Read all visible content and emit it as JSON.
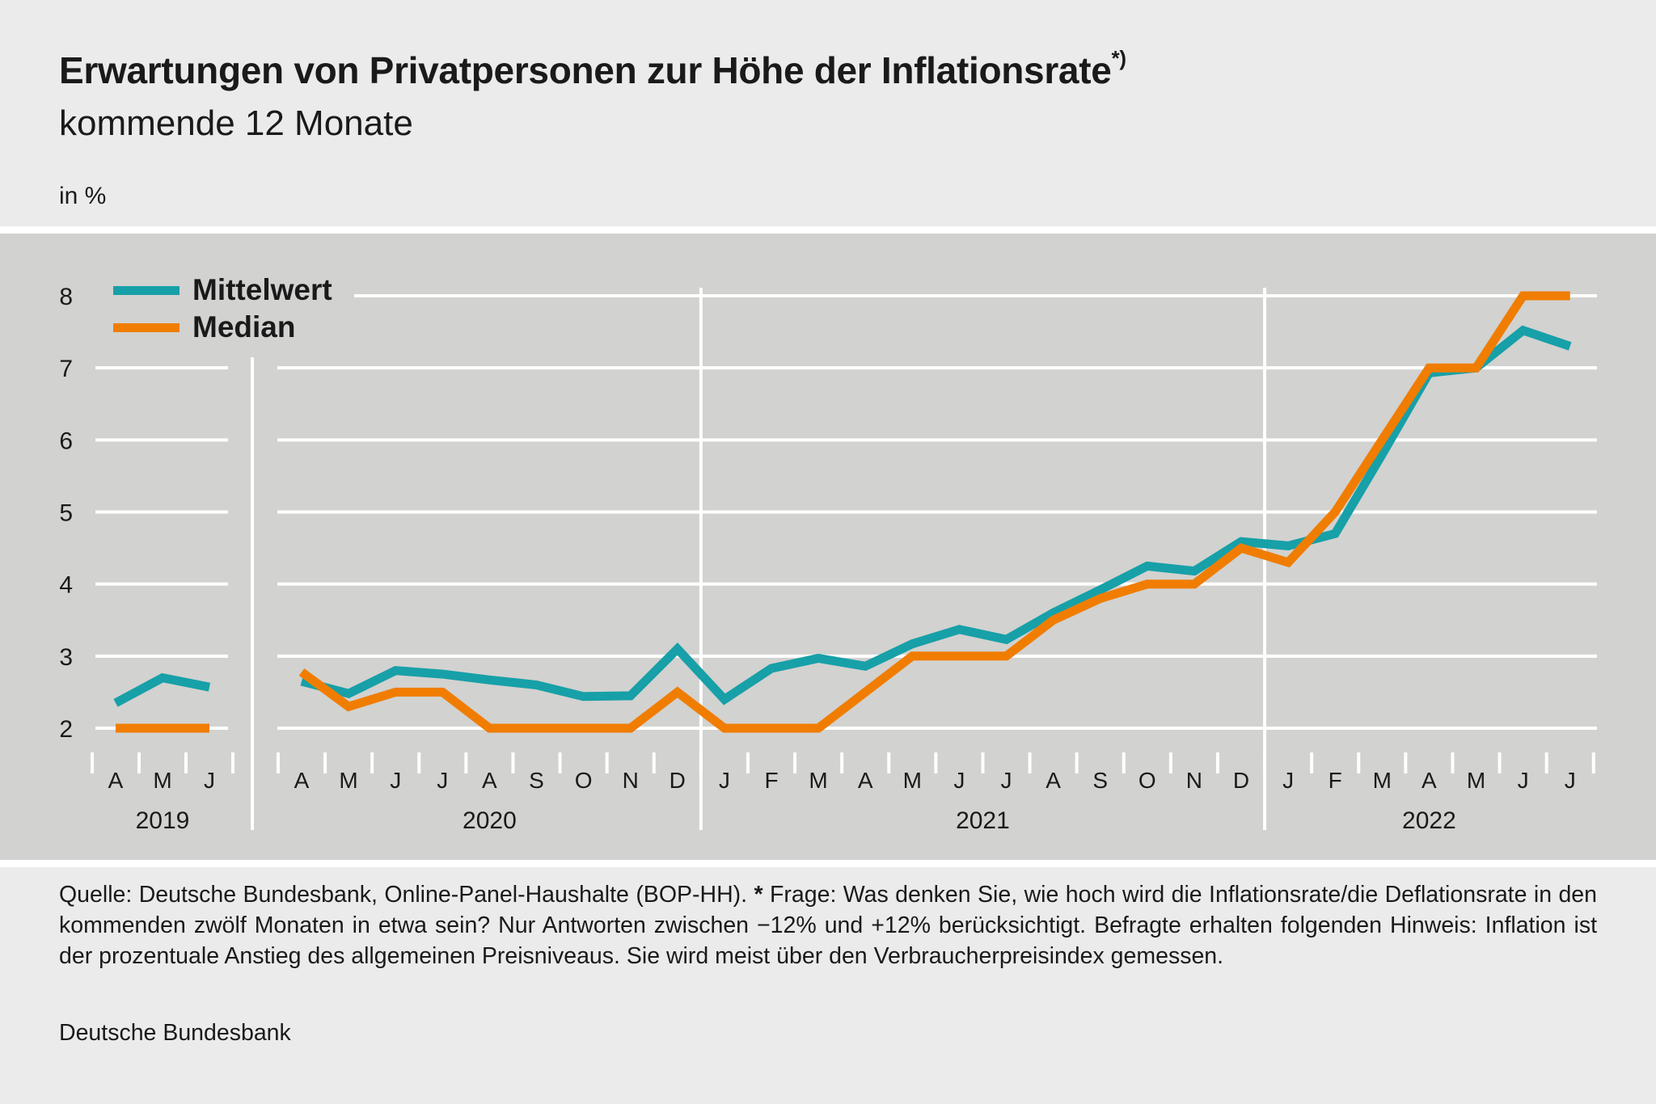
{
  "title": "Erwartungen von Privatpersonen zur Höhe der Inflationsrate",
  "title_note": "*)",
  "subtitle": "kommende 12 Monate",
  "unit": "in %",
  "footer": {
    "source": "Quelle: Deutsche Bundesbank, Online-Panel-Haushalte (BOP-HH).",
    "star": "*",
    "question": "Frage: Was denken Sie, wie hoch wird die Inflationsrate/die Deflationsrate in den kommenden zwölf Monaten in etwa sein? Nur Antworten zwischen −12% und +12% berücksichtigt. Befragte erhalten folgenden Hinweis: Inflation ist der prozentuale Anstieg des allgemeinen Preisniveaus. Sie wird meist über den Verbraucherpreisindex gemessen.",
    "publisher": "Deutsche Bundesbank"
  },
  "colors": {
    "mittelwert": "#17a0a8",
    "median": "#f07d00",
    "grid": "#ffffff",
    "background": "#d2d2d0"
  },
  "chart_data": {
    "type": "line",
    "ylim": [
      2,
      8
    ],
    "yticks": [
      2,
      3,
      4,
      5,
      6,
      7,
      8
    ],
    "legend": "top-left",
    "grid": true,
    "segments": [
      {
        "year": "2019",
        "months": [
          "A",
          "M",
          "J"
        ],
        "series": [
          {
            "name": "Mittelwert",
            "values": [
              2.35,
              2.7,
              2.57
            ]
          },
          {
            "name": "Median",
            "values": [
              2.0,
              2.0,
              2.0
            ]
          }
        ]
      },
      {
        "year_labels": [
          "2020",
          "2021",
          "2022"
        ],
        "months": [
          "A",
          "M",
          "J",
          "J",
          "A",
          "S",
          "O",
          "N",
          "D",
          "J",
          "F",
          "M",
          "A",
          "M",
          "J",
          "J",
          "A",
          "S",
          "O",
          "N",
          "D",
          "J",
          "F",
          "M",
          "A",
          "M",
          "J",
          "J"
        ],
        "year_of_month": [
          "2020",
          "2020",
          "2020",
          "2020",
          "2020",
          "2020",
          "2020",
          "2020",
          "2020",
          "2021",
          "2021",
          "2021",
          "2021",
          "2021",
          "2021",
          "2021",
          "2021",
          "2021",
          "2021",
          "2021",
          "2021",
          "2022",
          "2022",
          "2022",
          "2022",
          "2022",
          "2022",
          "2022"
        ],
        "series": [
          {
            "name": "Mittelwert",
            "values": [
              2.65,
              2.48,
              2.8,
              2.75,
              2.67,
              2.6,
              2.44,
              2.45,
              3.1,
              2.4,
              2.83,
              2.97,
              2.86,
              3.17,
              3.37,
              3.23,
              3.6,
              3.92,
              4.25,
              4.18,
              4.59,
              4.53,
              4.7,
              5.8,
              6.93,
              7.0,
              7.52,
              7.3
            ]
          },
          {
            "name": "Median",
            "values": [
              2.78,
              2.3,
              2.5,
              2.5,
              2.0,
              2.0,
              2.0,
              2.0,
              2.5,
              2.0,
              2.0,
              2.0,
              2.5,
              3.0,
              3.0,
              3.0,
              3.5,
              3.8,
              4.0,
              4.0,
              4.5,
              4.3,
              5.0,
              6.0,
              7.0,
              7.0,
              8.0,
              8.0
            ]
          }
        ]
      }
    ]
  }
}
